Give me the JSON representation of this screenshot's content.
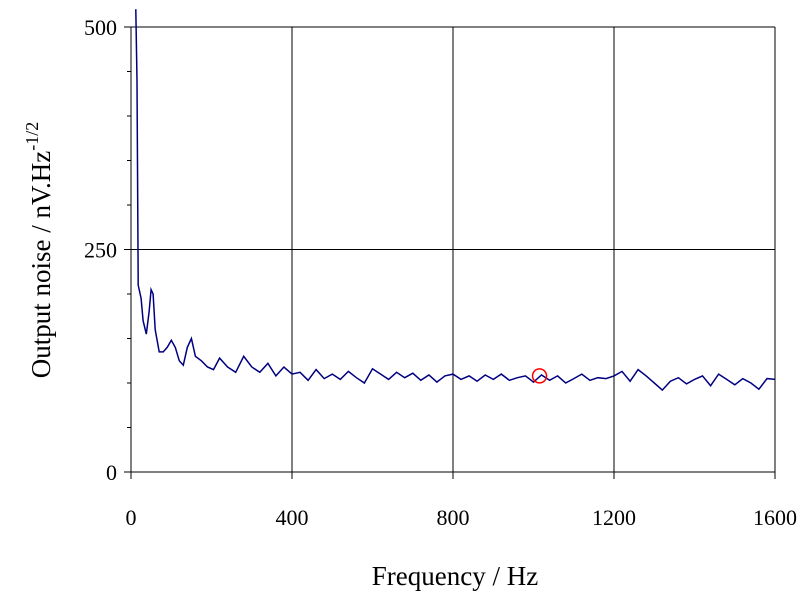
{
  "chart_data": {
    "type": "line",
    "xlabel": "Frequency / Hz",
    "ylabel": "Output noise / nV.Hz",
    "ylabel_superscript": "-1/2",
    "xlim": [
      0,
      1600
    ],
    "xticks": [
      0,
      400,
      800,
      1200,
      1600
    ],
    "ylim": [
      0,
      500
    ],
    "yticks": [
      0,
      250,
      500
    ],
    "yminorticks": [
      50,
      100,
      150,
      200,
      300,
      350,
      400,
      450
    ],
    "grid": true,
    "series": [
      {
        "color": "#000080",
        "x": [
          12,
          15,
          18,
          25,
          30,
          38,
          45,
          50,
          55,
          60,
          70,
          80,
          90,
          100,
          110,
          120,
          130,
          140,
          150,
          160,
          175,
          190,
          205,
          220,
          240,
          260,
          280,
          300,
          320,
          340,
          360,
          380,
          400,
          420,
          440,
          460,
          480,
          500,
          520,
          540,
          560,
          580,
          600,
          620,
          640,
          660,
          680,
          700,
          720,
          740,
          760,
          780,
          800,
          820,
          840,
          860,
          880,
          900,
          920,
          940,
          960,
          980,
          1000,
          1020,
          1040,
          1060,
          1080,
          1100,
          1120,
          1140,
          1160,
          1180,
          1200,
          1220,
          1240,
          1260,
          1280,
          1300,
          1320,
          1340,
          1360,
          1380,
          1400,
          1420,
          1440,
          1460,
          1480,
          1500,
          1520,
          1540,
          1560,
          1580,
          1600
        ],
        "values": [
          520,
          440,
          210,
          195,
          170,
          155,
          180,
          205,
          200,
          160,
          135,
          135,
          140,
          148,
          140,
          125,
          120,
          140,
          150,
          130,
          125,
          118,
          115,
          128,
          118,
          112,
          130,
          118,
          112,
          122,
          108,
          118,
          110,
          112,
          103,
          115,
          105,
          110,
          104,
          113,
          106,
          100,
          116,
          110,
          104,
          112,
          106,
          111,
          103,
          109,
          101,
          108,
          110,
          104,
          108,
          102,
          109,
          104,
          110,
          103,
          106,
          108,
          101,
          109,
          103,
          108,
          100,
          105,
          110,
          103,
          106,
          105,
          108,
          113,
          102,
          115,
          108,
          100,
          92,
          102,
          106,
          99,
          104,
          108,
          97,
          110,
          104,
          98,
          105,
          100,
          93,
          105,
          104
        ]
      }
    ],
    "marker": {
      "x": 1015,
      "y": 108,
      "color": "#ff0000"
    }
  }
}
